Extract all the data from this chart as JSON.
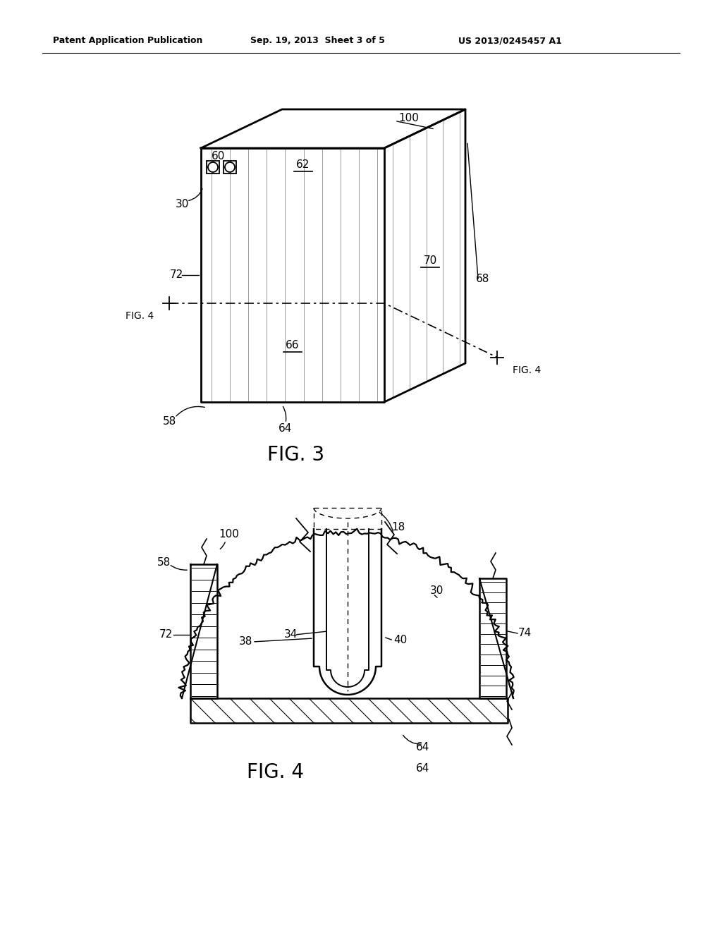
{
  "bg_color": "#ffffff",
  "header_left": "Patent Application Publication",
  "header_mid": "Sep. 19, 2013  Sheet 3 of 5",
  "header_right": "US 2013/0245457 A1",
  "fig3_label": "FIG. 3",
  "fig4_label": "FIG. 4",
  "line_color": "#000000"
}
